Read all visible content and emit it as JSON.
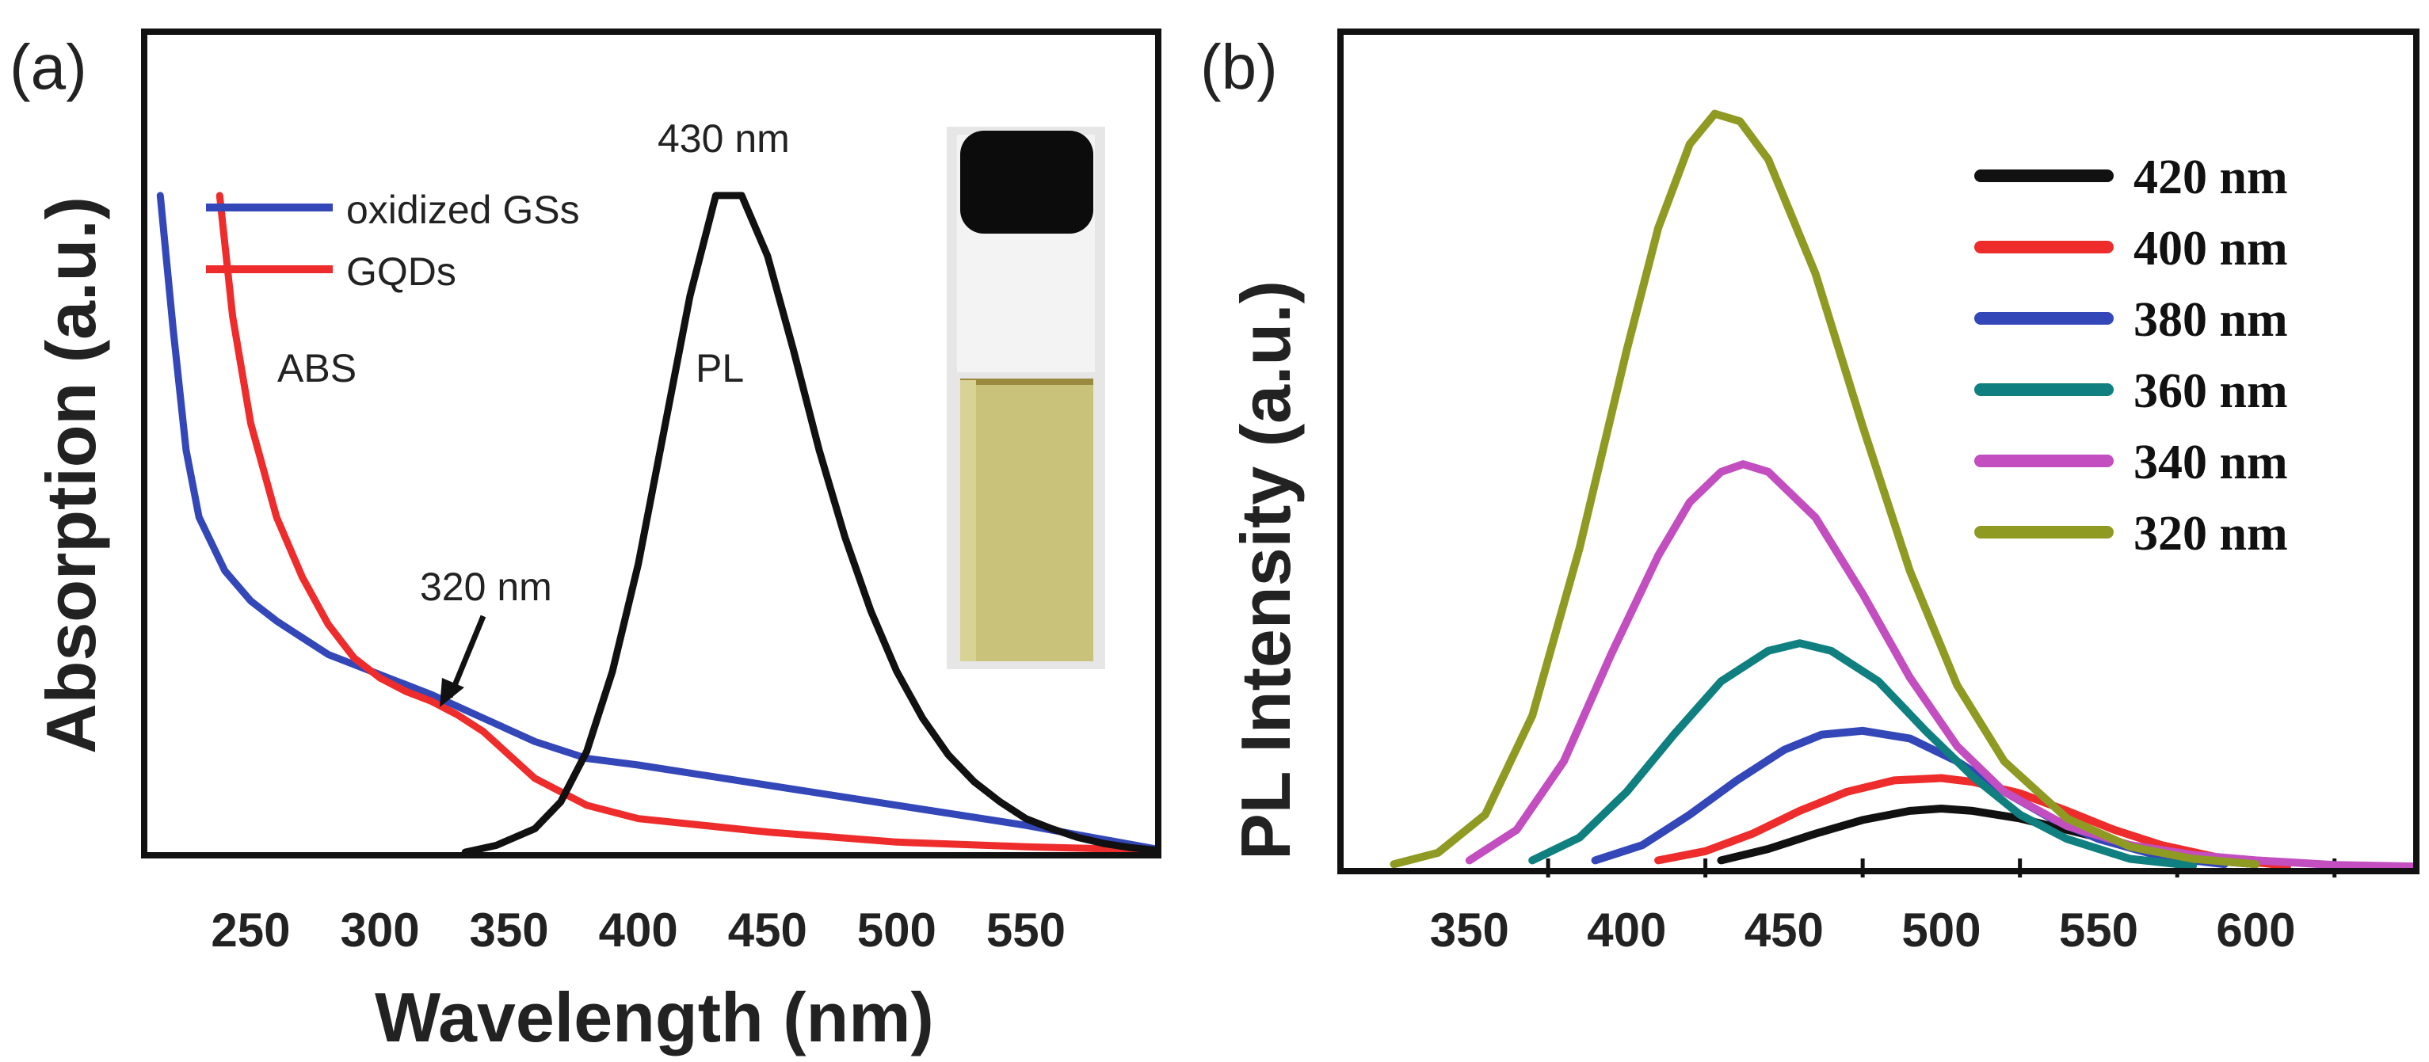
{
  "colors": {
    "blue": "#3347b8",
    "red": "#ee2c2c",
    "black": "#111111",
    "teal": "#0f7f7f",
    "magenta": "#c24ec0",
    "olive": "#8f9a22",
    "vial_liquid": "#c8c27a",
    "vial_cap": "#0c0c0c"
  },
  "chart_data": [
    {
      "panel": "(a)",
      "type": "line",
      "xlabel": "Wavelength (nm)",
      "ylabel": "Absorption (a.u.)",
      "xlim": [
        210,
        600
      ],
      "ylim": [
        0,
        1.0
      ],
      "xticks": [
        250,
        300,
        350,
        400,
        450,
        500,
        550
      ],
      "legend": {
        "placement": "top-left",
        "entries": [
          {
            "label": "oxidized GSs",
            "color": "#3347b8"
          },
          {
            "label": "GQDs",
            "color": "#ee2c2c"
          }
        ]
      },
      "annotations": [
        {
          "id": "abs",
          "text": "ABS"
        },
        {
          "id": "pl",
          "text": "PL"
        },
        {
          "id": "peak430",
          "text": "430 nm"
        },
        {
          "id": "shoulder320",
          "text": "320 nm",
          "arrow_to": [
            322,
            0.22
          ]
        }
      ],
      "inset": "vial photo of GQDs solution",
      "series": [
        {
          "name": "oxidized GSs (ABS)",
          "color": "#3347b8",
          "x": [
            215,
            220,
            225,
            230,
            240,
            250,
            260,
            270,
            280,
            300,
            320,
            340,
            360,
            380,
            400,
            450,
            500,
            550,
            600
          ],
          "y": [
            0.98,
            0.78,
            0.6,
            0.5,
            0.42,
            0.375,
            0.345,
            0.32,
            0.295,
            0.265,
            0.235,
            0.2,
            0.165,
            0.14,
            0.13,
            0.1,
            0.07,
            0.04,
            0.005
          ]
        },
        {
          "name": "GQDs (ABS)",
          "color": "#ee2c2c",
          "x": [
            238,
            243,
            250,
            260,
            270,
            280,
            290,
            300,
            310,
            320,
            330,
            340,
            350,
            360,
            380,
            400,
            450,
            500,
            550,
            600
          ],
          "y": [
            0.98,
            0.8,
            0.64,
            0.5,
            0.41,
            0.34,
            0.29,
            0.26,
            0.24,
            0.225,
            0.205,
            0.18,
            0.145,
            0.11,
            0.07,
            0.05,
            0.03,
            0.015,
            0.008,
            0.003
          ]
        },
        {
          "name": "GQDs (PL)",
          "color": "#111111",
          "x": [
            333,
            345,
            360,
            370,
            380,
            390,
            400,
            410,
            420,
            430,
            440,
            450,
            460,
            470,
            480,
            490,
            500,
            510,
            520,
            530,
            540,
            550,
            560,
            570,
            580,
            590,
            600
          ],
          "y": [
            0.0,
            0.01,
            0.035,
            0.075,
            0.15,
            0.27,
            0.43,
            0.63,
            0.83,
            0.98,
            0.98,
            0.89,
            0.75,
            0.6,
            0.47,
            0.36,
            0.27,
            0.2,
            0.145,
            0.105,
            0.075,
            0.05,
            0.035,
            0.022,
            0.013,
            0.007,
            0.003
          ]
        }
      ]
    },
    {
      "panel": "(b)",
      "type": "line",
      "xlabel": "",
      "ylabel": "PL Intensity (a.u.)",
      "xlim": [
        310,
        650
      ],
      "ylim": [
        0,
        1.0
      ],
      "xticks": [
        350,
        400,
        450,
        500,
        550,
        600
      ],
      "legend": {
        "placement": "top-right"
      },
      "series": [
        {
          "name": "420 nm",
          "color": "#111111",
          "x": [
            430,
            445,
            460,
            475,
            490,
            500,
            510,
            525,
            540,
            555,
            570,
            585,
            600
          ],
          "y": [
            0.01,
            0.025,
            0.045,
            0.063,
            0.075,
            0.078,
            0.075,
            0.065,
            0.05,
            0.035,
            0.02,
            0.01,
            0.005
          ]
        },
        {
          "name": "400 nm",
          "color": "#ee2c2c",
          "x": [
            410,
            425,
            440,
            455,
            470,
            485,
            500,
            510,
            525,
            540,
            555,
            570,
            590,
            610
          ],
          "y": [
            0.01,
            0.022,
            0.045,
            0.075,
            0.1,
            0.115,
            0.118,
            0.113,
            0.098,
            0.075,
            0.05,
            0.03,
            0.012,
            0.003
          ]
        },
        {
          "name": "380 nm",
          "color": "#3347b8",
          "x": [
            390,
            405,
            420,
            435,
            450,
            462,
            475,
            490,
            505,
            520,
            535,
            550,
            570,
            590
          ],
          "y": [
            0.01,
            0.03,
            0.07,
            0.115,
            0.155,
            0.175,
            0.18,
            0.17,
            0.14,
            0.1,
            0.065,
            0.038,
            0.015,
            0.005
          ]
        },
        {
          "name": "360 nm",
          "color": "#0f7f7f",
          "x": [
            370,
            385,
            400,
            415,
            430,
            445,
            455,
            465,
            480,
            495,
            510,
            525,
            540,
            560,
            580
          ],
          "y": [
            0.01,
            0.04,
            0.1,
            0.175,
            0.245,
            0.285,
            0.295,
            0.285,
            0.245,
            0.18,
            0.12,
            0.07,
            0.038,
            0.012,
            0.003
          ]
        },
        {
          "name": "340 nm",
          "color": "#c24ec0",
          "x": [
            350,
            365,
            380,
            395,
            410,
            420,
            430,
            437,
            445,
            460,
            475,
            490,
            505,
            520,
            540,
            560,
            580,
            600,
            625,
            650
          ],
          "y": [
            0.01,
            0.05,
            0.14,
            0.28,
            0.41,
            0.48,
            0.52,
            0.53,
            0.52,
            0.46,
            0.36,
            0.25,
            0.16,
            0.1,
            0.055,
            0.03,
            0.017,
            0.01,
            0.004,
            0.002
          ]
        },
        {
          "name": "320 nm",
          "color": "#8f9a22",
          "x": [
            326,
            340,
            355,
            370,
            385,
            400,
            410,
            420,
            428,
            436,
            445,
            460,
            475,
            490,
            505,
            520,
            540,
            560,
            580,
            600
          ],
          "y": [
            0.005,
            0.02,
            0.07,
            0.2,
            0.42,
            0.68,
            0.84,
            0.95,
            0.99,
            0.98,
            0.93,
            0.78,
            0.58,
            0.39,
            0.24,
            0.14,
            0.065,
            0.028,
            0.012,
            0.005
          ]
        }
      ]
    }
  ]
}
